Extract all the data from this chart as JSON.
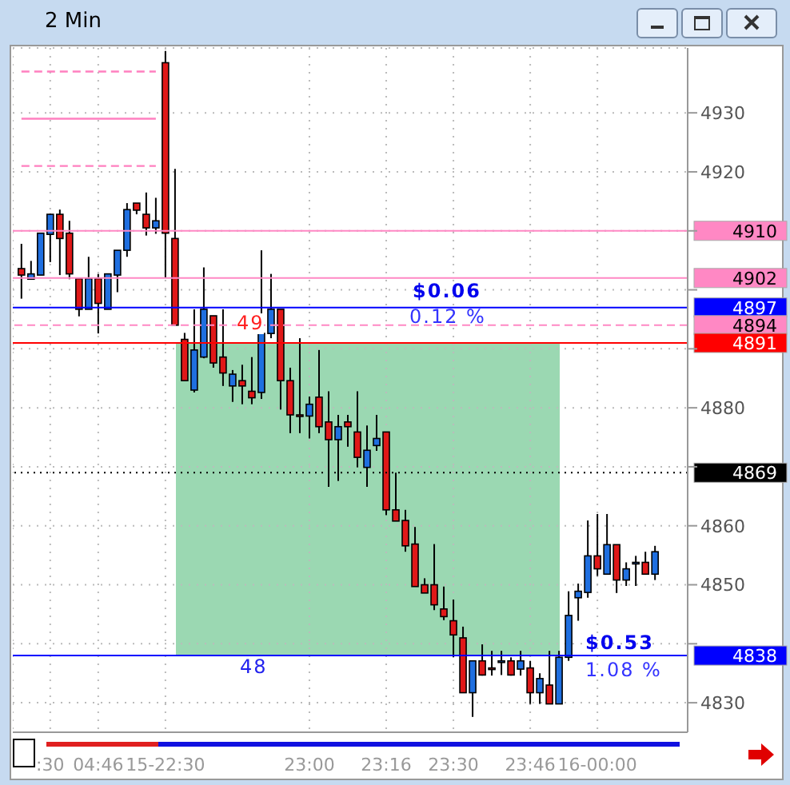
{
  "chart_data": {
    "type": "candlestick",
    "title": "2 Min",
    "categories": [
      null,
      null,
      null,
      ":30",
      null,
      null,
      null,
      null,
      "04:46",
      null,
      null,
      null,
      null,
      null,
      null,
      "15-22:30",
      null,
      null,
      null,
      null,
      null,
      null,
      null,
      null,
      null,
      null,
      null,
      null,
      null,
      null,
      "23:00",
      null,
      null,
      null,
      null,
      null,
      null,
      null,
      "23:16",
      null,
      null,
      null,
      null,
      null,
      null,
      "23:30",
      null,
      null,
      null,
      null,
      null,
      null,
      null,
      "23:46",
      null,
      null,
      null,
      null,
      null,
      null,
      "16-00:00",
      null,
      null,
      null,
      null,
      null,
      null
    ],
    "ohlc": [
      [
        4903.6,
        4907.8,
        4898.5,
        4902.5
      ],
      [
        4901.8,
        4904.9,
        4901.8,
        4902.7
      ],
      [
        4902.5,
        4909.6,
        4902.5,
        4909.6
      ],
      [
        4909.4,
        4912.9,
        4904.7,
        4912.8
      ],
      [
        4912.8,
        4913.6,
        4902.5,
        4908.7
      ],
      [
        4909.6,
        4911.7,
        4901.8,
        4902.7
      ],
      [
        4901.9,
        4901.9,
        4895.5,
        4896.7
      ],
      [
        4896.7,
        4905.6,
        4896.7,
        4901.9
      ],
      [
        4901.9,
        4902.7,
        4892.6,
        4897.7
      ],
      [
        4896.7,
        4902.7,
        4896.7,
        4902.7
      ],
      [
        4902.5,
        4906.7,
        4899.6,
        4906.7
      ],
      [
        4906.7,
        4914.7,
        4905.6,
        4913.6
      ],
      [
        4914.7,
        4914.7,
        4912.8,
        4913.5
      ],
      [
        4912.8,
        4916.5,
        4909.2,
        4910.5
      ],
      [
        4910.5,
        4915.6,
        4909.5,
        4911.7
      ],
      [
        4938.5,
        4940.5,
        4902.0,
        4909.6
      ],
      [
        4908.7,
        4920.5,
        4894.0,
        4894.0
      ],
      [
        4891.6,
        4892.7,
        4884.6,
        4884.6
      ],
      [
        4883.0,
        4896.7,
        4882.6,
        4889.8
      ],
      [
        4888.6,
        4903.8,
        4888.4,
        4896.7
      ],
      [
        4895.6,
        4895.6,
        4886.8,
        4887.6
      ],
      [
        4888.6,
        4896.7,
        4883.7,
        4885.9
      ],
      [
        4883.7,
        4886.4,
        4881.0,
        4885.7
      ],
      [
        4884.6,
        4887.3,
        4880.6,
        4883.7
      ],
      [
        4882.8,
        4888.6,
        4880.6,
        4881.7
      ],
      [
        4882.6,
        4906.7,
        4881.5,
        4892.6
      ],
      [
        4892.6,
        4902.7,
        4891.8,
        4896.7
      ],
      [
        4896.7,
        4896.7,
        4879.7,
        4884.6
      ],
      [
        4884.6,
        4886.8,
        4875.7,
        4878.8
      ],
      [
        4878.8,
        4891.8,
        4875.7,
        4878.6
      ],
      [
        4878.6,
        4881.9,
        4874.8,
        4880.6
      ],
      [
        4881.8,
        4889.8,
        4875.7,
        4876.8
      ],
      [
        4877.6,
        4882.8,
        4866.6,
        4874.6
      ],
      [
        4874.6,
        4878.8,
        4867.6,
        4876.8
      ],
      [
        4877.6,
        4878.8,
        4873.4,
        4876.8
      ],
      [
        4875.9,
        4882.8,
        4869.9,
        4871.6
      ],
      [
        4869.9,
        4877.0,
        4866.6,
        4872.8
      ],
      [
        4873.6,
        4878.8,
        4872.7,
        4874.8
      ],
      [
        4875.9,
        4875.9,
        4861.8,
        4862.7
      ],
      [
        4862.7,
        4869.0,
        4860.8,
        4860.8
      ],
      [
        4860.9,
        4862.7,
        4855.6,
        4856.6
      ],
      [
        4856.9,
        4859.8,
        4849.7,
        4849.7
      ],
      [
        4850.0,
        4851.1,
        4848.6,
        4848.6
      ],
      [
        4850.0,
        4856.9,
        4845.7,
        4846.6
      ],
      [
        4845.9,
        4849.7,
        4844.0,
        4844.6
      ],
      [
        4843.9,
        4847.5,
        4837.7,
        4841.5
      ],
      [
        4841.0,
        4842.9,
        4831.7,
        4831.7
      ],
      [
        4831.7,
        4837.1,
        4827.6,
        4837.1
      ],
      [
        4837.1,
        4839.9,
        4834.6,
        4834.7
      ],
      [
        4835.9,
        4838.8,
        4834.6,
        4835.7
      ],
      [
        4836.9,
        4838.8,
        4834.7,
        4837.1
      ],
      [
        4837.1,
        4837.7,
        4834.6,
        4834.7
      ],
      [
        4835.7,
        4838.8,
        4834.6,
        4837.1
      ],
      [
        4835.9,
        4837.1,
        4829.8,
        4831.7
      ],
      [
        4831.7,
        4835.0,
        4829.8,
        4834.1
      ],
      [
        4833.0,
        4838.8,
        4829.8,
        4829.8
      ],
      [
        4829.8,
        4838.8,
        4829.8,
        4837.7
      ],
      [
        4837.7,
        4848.9,
        4837.1,
        4844.8
      ],
      [
        4847.8,
        4850.2,
        4843.9,
        4848.9
      ],
      [
        4848.7,
        4860.9,
        4847.8,
        4854.9
      ],
      [
        4854.9,
        4862.0,
        4851.5,
        4852.7
      ],
      [
        4851.8,
        4862.0,
        4851.8,
        4856.8
      ],
      [
        4856.8,
        4856.8,
        4848.6,
        4850.8
      ],
      [
        4850.8,
        4853.8,
        4849.8,
        4852.7
      ],
      [
        4853.6,
        4854.9,
        4849.8,
        4853.8
      ],
      [
        4853.8,
        4855.6,
        4851.8,
        4851.8
      ],
      [
        4851.8,
        4856.6,
        4850.8,
        4855.6
      ]
    ],
    "colors": [
      "#e01818",
      "#1f6fe0",
      "#1f6fe0",
      "#1f6fe0",
      "#e01818",
      "#e01818",
      "#e01818",
      "#1f6fe0",
      "#e01818",
      "#1f6fe0",
      "#1f6fe0",
      "#1f6fe0",
      "#e01818",
      "#e01818",
      "#1f6fe0",
      "#e01818",
      "#e01818",
      "#e01818",
      "#1f6fe0",
      "#1f6fe0",
      "#e01818",
      "#e01818",
      "#1f6fe0",
      "#e01818",
      "#e01818",
      "#1f6fe0",
      "#1f6fe0",
      "#e01818",
      "#e01818",
      "#e01818",
      "#1f6fe0",
      "#e01818",
      "#e01818",
      "#1f6fe0",
      "#e01818",
      "#e01818",
      "#1f6fe0",
      "#1f6fe0",
      "#e01818",
      "#e01818",
      "#e01818",
      "#e01818",
      "#e01818",
      "#e01818",
      "#e01818",
      "#e01818",
      "#e01818",
      "#1f6fe0",
      "#e01818",
      "#e01818",
      "#1f6fe0",
      "#e01818",
      "#1f6fe0",
      "#e01818",
      "#1f6fe0",
      "#e01818",
      "#1f6fe0",
      "#1f6fe0",
      "#1f6fe0",
      "#1f6fe0",
      "#e01818",
      "#1f6fe0",
      "#e01818",
      "#1f6fe0",
      "#1f6fe0",
      "#e01818",
      "#1f6fe0"
    ],
    "series": [
      {
        "type": "line",
        "color": "#ff80c0",
        "line_style": "dashed",
        "values": [
          4937,
          4937,
          4937,
          4937,
          4937,
          4937,
          4937,
          4937,
          4937,
          4937,
          4937,
          4937,
          4937,
          4937,
          4937,
          null,
          null,
          null,
          null,
          null,
          null,
          null,
          null,
          null,
          null,
          null,
          null,
          null,
          null,
          null,
          null,
          null,
          null,
          null,
          null,
          null,
          null,
          null,
          null,
          null,
          null,
          null,
          null,
          null,
          null,
          null,
          null,
          null,
          null,
          null,
          null,
          null,
          null,
          null,
          null,
          null,
          null,
          null,
          null,
          null,
          null,
          null,
          null,
          null,
          null,
          null,
          null
        ]
      },
      {
        "type": "line",
        "color": "#ff80c0",
        "line_style": "solid",
        "values": [
          4929,
          4929,
          4929,
          4929,
          4929,
          4929,
          4929,
          4929,
          4929,
          4929,
          4929,
          4929,
          4929,
          4929,
          4929,
          null,
          null,
          null,
          null,
          null,
          null,
          null,
          null,
          null,
          null,
          null,
          null,
          null,
          null,
          null,
          null,
          null,
          null,
          null,
          null,
          null,
          null,
          null,
          null,
          null,
          null,
          null,
          null,
          null,
          null,
          null,
          null,
          null,
          null,
          null,
          null,
          null,
          null,
          null,
          null,
          null,
          null,
          null,
          null,
          null,
          null,
          null,
          null,
          null,
          null,
          null,
          null
        ]
      },
      {
        "type": "line",
        "color": "#ff80c0",
        "line_style": "dashed",
        "values": [
          4921,
          4921,
          4921,
          4921,
          4921,
          4921,
          4921,
          4921,
          4921,
          4921,
          4921,
          4921,
          4921,
          4921,
          4921,
          null,
          null,
          null,
          null,
          null,
          null,
          null,
          null,
          null,
          null,
          null,
          null,
          null,
          null,
          null,
          null,
          null,
          null,
          null,
          null,
          null,
          null,
          null,
          null,
          null,
          null,
          null,
          null,
          null,
          null,
          null,
          null,
          null,
          null,
          null,
          null,
          null,
          null,
          null,
          null,
          null,
          null,
          null,
          null,
          null,
          null,
          null,
          null,
          null,
          null,
          null,
          null
        ]
      }
    ],
    "ylim": [
      4825,
      4941
    ],
    "yticks": [
      4830,
      {
        "value": 4840,
        "label": null
      },
      4850,
      4860,
      {
        "value": 4870,
        "label": null
      },
      4880,
      {
        "value": 4890,
        "label": null
      },
      {
        "value": 4900,
        "label": null
      },
      {
        "value": 4910,
        "label": null
      },
      4920,
      4930
    ],
    "grid": true,
    "ref_lines": [
      {
        "axis": "y",
        "value": 4910,
        "label": "4910",
        "color": "#ff88c4",
        "line_style": "solid"
      },
      {
        "axis": "y",
        "value": 4902,
        "label": "4902",
        "color": "#ff88c4",
        "line_style": "solid"
      },
      {
        "axis": "y",
        "value": 4897,
        "label": "4897",
        "color": "#0000ff",
        "line_style": "solid"
      },
      {
        "axis": "y",
        "value": 4894,
        "label": "4894",
        "color": "#ff88c4",
        "line_style": "dashed"
      },
      {
        "axis": "y",
        "value": 4891,
        "label": "4891",
        "color": "#ff0000",
        "line_style": "solid"
      },
      {
        "axis": "y",
        "value": 4869,
        "label": "4869",
        "color": "#000000",
        "line_style": "dotted"
      },
      {
        "axis": "y",
        "value": 4838,
        "label": "4838",
        "color": "#0000ff",
        "line_style": "solid"
      }
    ],
    "annotations": [
      "$0.06",
      "0.12 %",
      "49",
      "48",
      "$0.53",
      "1.08 %"
    ]
  }
}
